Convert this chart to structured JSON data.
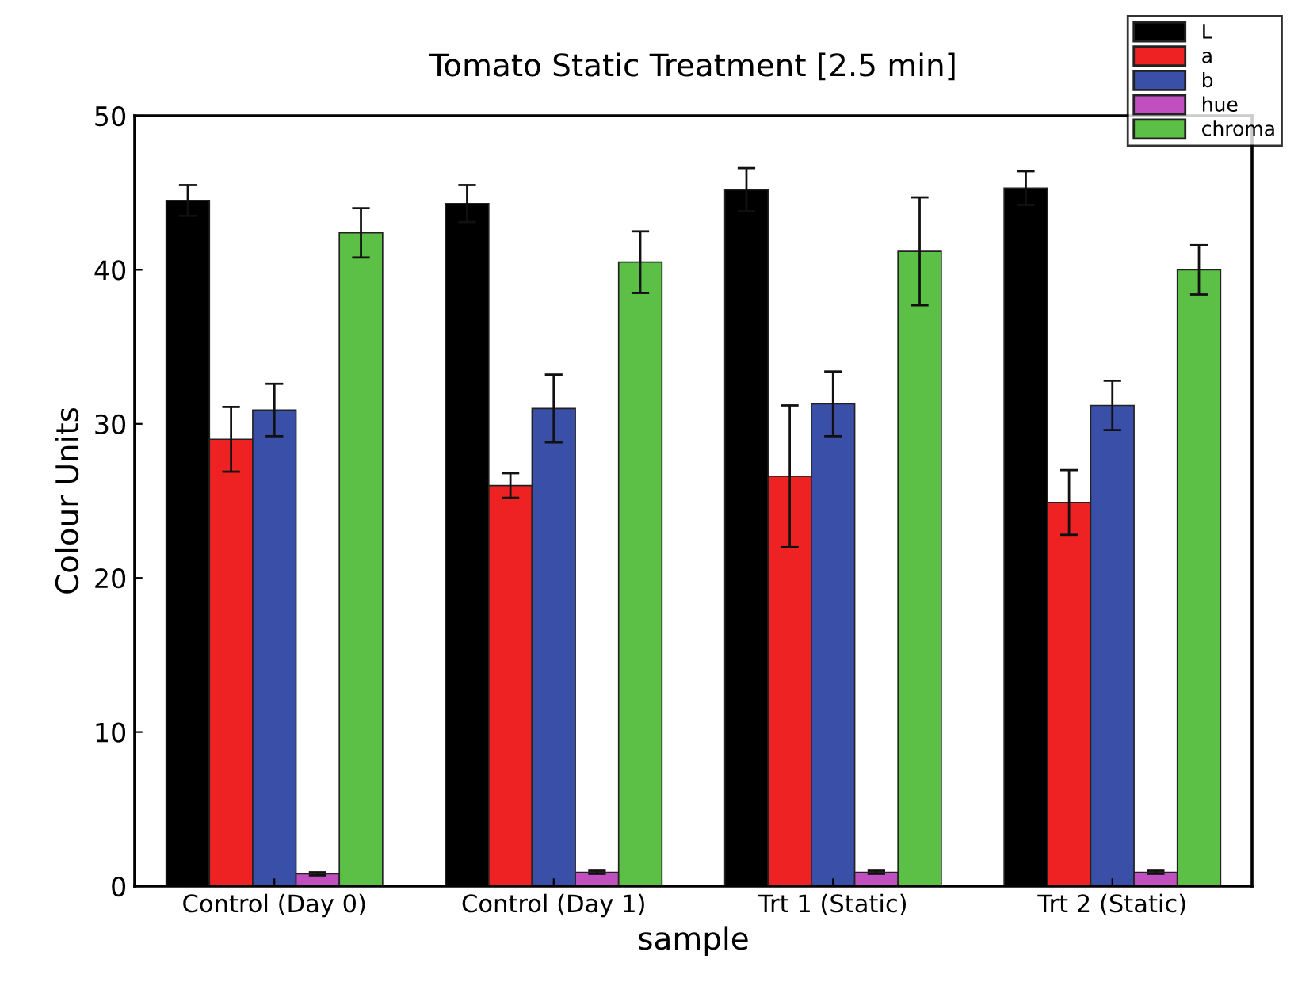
{
  "chart_data": {
    "type": "bar",
    "title": "Tomato Static Treatment [2.5 min]",
    "xlabel": "sample",
    "ylabel": "Colour Units",
    "categories": [
      "Control (Day 0)",
      "Control (Day 1)",
      "Trt 1 (Static)",
      "Trt 2 (Static)"
    ],
    "series": [
      {
        "name": "L",
        "color": "#000000",
        "values": [
          44.5,
          44.3,
          45.2,
          45.3
        ],
        "errors": [
          1.0,
          1.2,
          1.4,
          1.1
        ]
      },
      {
        "name": "a",
        "color": "#ee2222",
        "values": [
          29.0,
          26.0,
          26.6,
          24.9
        ],
        "errors": [
          2.1,
          0.8,
          4.6,
          2.1
        ]
      },
      {
        "name": "b",
        "color": "#3a4fa8",
        "values": [
          30.9,
          31.0,
          31.3,
          31.2
        ],
        "errors": [
          1.7,
          2.2,
          2.1,
          1.6
        ]
      },
      {
        "name": "hue",
        "color": "#c04fc0",
        "values": [
          0.8,
          0.9,
          0.9,
          0.9
        ],
        "errors": [
          0.1,
          0.1,
          0.1,
          0.1
        ]
      },
      {
        "name": "chroma",
        "color": "#5cbf46",
        "values": [
          42.4,
          40.5,
          41.2,
          40.0
        ],
        "errors": [
          1.6,
          2.0,
          3.5,
          1.6
        ]
      }
    ],
    "ylim": [
      0,
      50
    ],
    "yticks": [
      0,
      10,
      20,
      30,
      40,
      50
    ],
    "grid": false,
    "legend": "top right"
  }
}
